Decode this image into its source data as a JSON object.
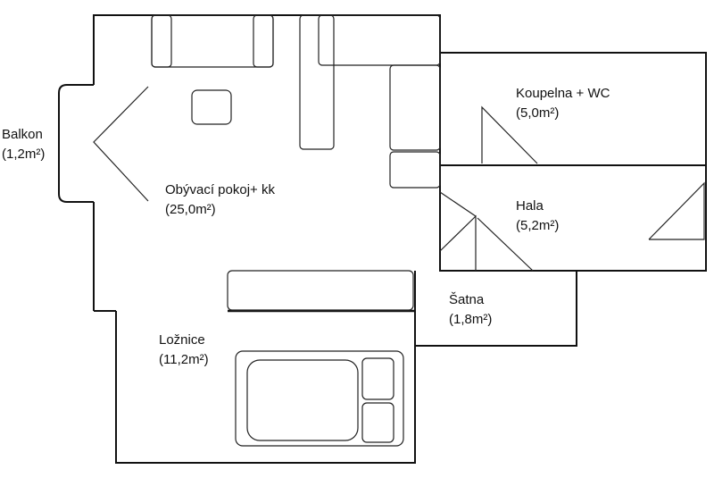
{
  "rooms": {
    "balkon": {
      "name": "Balkon",
      "area": "(1,2m²)"
    },
    "obyvaci": {
      "name": "Obývací pokoj+ kk",
      "area": "(25,0m²)"
    },
    "koupelna": {
      "name": "Koupelna + WC",
      "area": "(5,0m²)"
    },
    "hala": {
      "name": "Hala",
      "area": "(5,2m²)"
    },
    "satna": {
      "name": "Šatna",
      "area": "(1,8m²)"
    },
    "loznice": {
      "name": "Ložnice",
      "area": "(11,2m²)"
    }
  },
  "colors": {
    "line": "#111111",
    "background": "#ffffff"
  }
}
